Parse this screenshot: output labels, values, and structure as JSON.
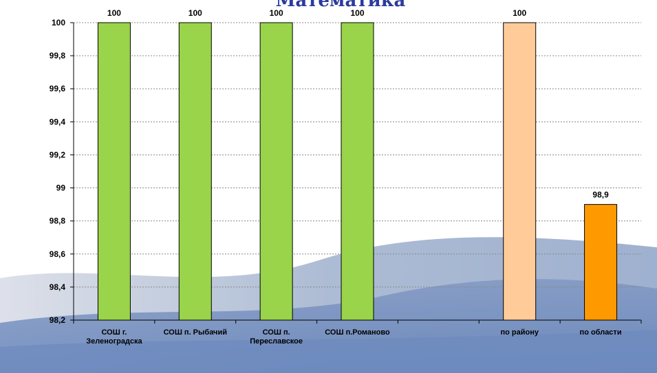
{
  "chart_data": {
    "type": "bar",
    "title": "Математика",
    "categories": [
      "СОШ г. Зеленоградска",
      "СОШ п. Рыбачий",
      "СОШ п. Переславское",
      "СОШ п.Романово",
      "",
      "по району",
      "по области"
    ],
    "values": [
      100,
      100,
      100,
      100,
      null,
      100,
      98.9
    ],
    "data_labels": [
      "100",
      "100",
      "100",
      "100",
      "",
      "100",
      "98,9"
    ],
    "bar_colors": [
      "#99d44a",
      "#99d44a",
      "#99d44a",
      "#99d44a",
      "",
      "#ffcc99",
      "#ff9900"
    ],
    "ylim": [
      98.2,
      100
    ],
    "yticks": [
      "98,2",
      "98,4",
      "98,6",
      "98,8",
      "99",
      "99,2",
      "99,4",
      "99,6",
      "99,8",
      "100"
    ],
    "grid": true,
    "legend": "none"
  }
}
